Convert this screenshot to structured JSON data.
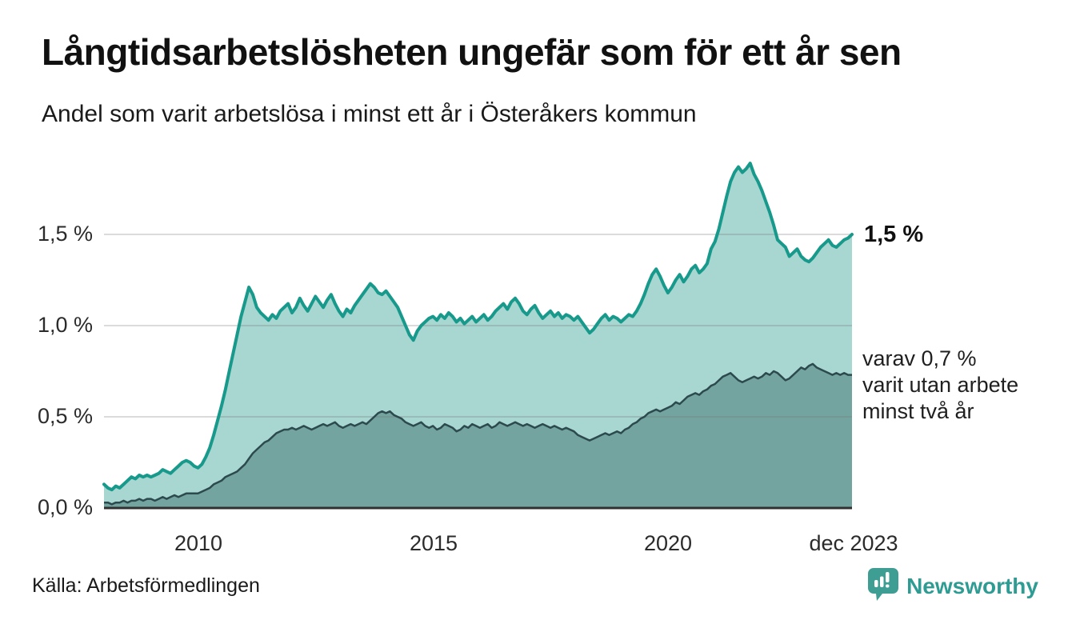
{
  "header": {
    "title": "Långtidsarbetslösheten ungefär som för ett år sen",
    "subtitle": "Andel som varit arbetslösa i minst ett år i Österåkers kommun"
  },
  "chart_data": {
    "type": "area",
    "title": "Långtidsarbetslösheten ungefär som för ett år sen",
    "subtitle": "Andel som varit arbetslösa i minst ett år i Österåkers kommun",
    "x_unit": "month",
    "x_start": "2008-01",
    "x_end": "2023-12",
    "ylim": [
      0,
      1.9
    ],
    "grid_values": [
      1.5,
      1.0,
      0.5
    ],
    "grid": true,
    "legend_position": "none",
    "yticks": [
      "1,5 %",
      "1,0 %",
      "0,5 %",
      "0,0 %"
    ],
    "xticks": [
      "2010",
      "2015",
      "2020",
      "dec 2023"
    ],
    "xtick_indices": [
      24,
      84,
      144,
      191
    ],
    "series": [
      {
        "name": "Andel arbetslösa minst ett år",
        "color": "#17998b",
        "fill": "#a8d6d0",
        "last_value_label": "1,5 %",
        "values": [
          0.13,
          0.11,
          0.1,
          0.12,
          0.11,
          0.13,
          0.15,
          0.17,
          0.16,
          0.18,
          0.17,
          0.18,
          0.17,
          0.18,
          0.19,
          0.21,
          0.2,
          0.19,
          0.21,
          0.23,
          0.25,
          0.26,
          0.25,
          0.23,
          0.22,
          0.24,
          0.28,
          0.33,
          0.4,
          0.48,
          0.56,
          0.65,
          0.75,
          0.85,
          0.95,
          1.05,
          1.13,
          1.21,
          1.17,
          1.1,
          1.07,
          1.05,
          1.03,
          1.06,
          1.04,
          1.08,
          1.1,
          1.12,
          1.07,
          1.1,
          1.15,
          1.11,
          1.08,
          1.12,
          1.16,
          1.13,
          1.1,
          1.14,
          1.17,
          1.12,
          1.08,
          1.05,
          1.09,
          1.07,
          1.11,
          1.14,
          1.17,
          1.2,
          1.23,
          1.21,
          1.18,
          1.17,
          1.19,
          1.16,
          1.13,
          1.1,
          1.05,
          1.0,
          0.95,
          0.92,
          0.97,
          1.0,
          1.02,
          1.04,
          1.05,
          1.03,
          1.06,
          1.04,
          1.07,
          1.05,
          1.02,
          1.04,
          1.01,
          1.03,
          1.05,
          1.02,
          1.04,
          1.06,
          1.03,
          1.05,
          1.08,
          1.1,
          1.12,
          1.09,
          1.13,
          1.15,
          1.12,
          1.08,
          1.06,
          1.09,
          1.11,
          1.07,
          1.04,
          1.06,
          1.08,
          1.05,
          1.07,
          1.04,
          1.06,
          1.05,
          1.03,
          1.05,
          1.02,
          0.99,
          0.96,
          0.98,
          1.01,
          1.04,
          1.06,
          1.03,
          1.05,
          1.04,
          1.02,
          1.04,
          1.06,
          1.05,
          1.08,
          1.12,
          1.17,
          1.23,
          1.28,
          1.31,
          1.27,
          1.22,
          1.18,
          1.21,
          1.25,
          1.28,
          1.24,
          1.27,
          1.31,
          1.33,
          1.29,
          1.31,
          1.34,
          1.42,
          1.46,
          1.53,
          1.62,
          1.71,
          1.79,
          1.84,
          1.87,
          1.84,
          1.86,
          1.89,
          1.83,
          1.79,
          1.74,
          1.68,
          1.62,
          1.55,
          1.47,
          1.45,
          1.43,
          1.38,
          1.4,
          1.42,
          1.38,
          1.36,
          1.35,
          1.37,
          1.4,
          1.43,
          1.45,
          1.47,
          1.44,
          1.43,
          1.45,
          1.47,
          1.48,
          1.5
        ]
      },
      {
        "name": "varav utan arbete minst två år",
        "color": "#2c4a4e",
        "fill": "#74a49f",
        "last_value_label": "0,7 %",
        "values": [
          0.03,
          0.03,
          0.02,
          0.03,
          0.03,
          0.04,
          0.03,
          0.04,
          0.04,
          0.05,
          0.04,
          0.05,
          0.05,
          0.04,
          0.05,
          0.06,
          0.05,
          0.06,
          0.07,
          0.06,
          0.07,
          0.08,
          0.08,
          0.08,
          0.08,
          0.09,
          0.1,
          0.11,
          0.13,
          0.14,
          0.15,
          0.17,
          0.18,
          0.19,
          0.2,
          0.22,
          0.24,
          0.27,
          0.3,
          0.32,
          0.34,
          0.36,
          0.37,
          0.39,
          0.41,
          0.42,
          0.43,
          0.43,
          0.44,
          0.43,
          0.44,
          0.45,
          0.44,
          0.43,
          0.44,
          0.45,
          0.46,
          0.45,
          0.46,
          0.47,
          0.45,
          0.44,
          0.45,
          0.46,
          0.45,
          0.46,
          0.47,
          0.46,
          0.48,
          0.5,
          0.52,
          0.53,
          0.52,
          0.53,
          0.51,
          0.5,
          0.49,
          0.47,
          0.46,
          0.45,
          0.46,
          0.47,
          0.45,
          0.44,
          0.45,
          0.43,
          0.44,
          0.46,
          0.45,
          0.44,
          0.42,
          0.43,
          0.45,
          0.44,
          0.46,
          0.45,
          0.44,
          0.45,
          0.46,
          0.44,
          0.45,
          0.47,
          0.46,
          0.45,
          0.46,
          0.47,
          0.46,
          0.45,
          0.46,
          0.45,
          0.44,
          0.45,
          0.46,
          0.45,
          0.44,
          0.45,
          0.44,
          0.43,
          0.44,
          0.43,
          0.42,
          0.4,
          0.39,
          0.38,
          0.37,
          0.38,
          0.39,
          0.4,
          0.41,
          0.4,
          0.41,
          0.42,
          0.41,
          0.43,
          0.44,
          0.46,
          0.47,
          0.49,
          0.5,
          0.52,
          0.53,
          0.54,
          0.53,
          0.54,
          0.55,
          0.56,
          0.58,
          0.57,
          0.59,
          0.61,
          0.62,
          0.63,
          0.62,
          0.64,
          0.65,
          0.67,
          0.68,
          0.7,
          0.72,
          0.73,
          0.74,
          0.72,
          0.7,
          0.69,
          0.7,
          0.71,
          0.72,
          0.71,
          0.72,
          0.74,
          0.73,
          0.75,
          0.74,
          0.72,
          0.7,
          0.71,
          0.73,
          0.75,
          0.77,
          0.76,
          0.78,
          0.79,
          0.77,
          0.76,
          0.75,
          0.74,
          0.73,
          0.74,
          0.73,
          0.74,
          0.73,
          0.73
        ]
      }
    ],
    "annotations": [
      {
        "text": "1,5 %",
        "series": 0,
        "position": "end-of-line"
      },
      {
        "text": "varav 0,7 % varit utan arbete minst två år",
        "series": 1,
        "position": "right-of-plot"
      }
    ]
  },
  "annotation_latest": {
    "label": "1,5 %"
  },
  "annotation_secondary": {
    "line1": "varav 0,7 %",
    "line2": "varit utan arbete",
    "line3": "minst två år"
  },
  "footer": {
    "source": "Källa: Arbetsförmedlingen",
    "brand": "Newsworthy"
  },
  "colors": {
    "line_primary": "#17998b",
    "fill_primary": "#a8d6d0",
    "line_secondary": "#2c4a4e",
    "fill_secondary": "#74a49f",
    "baseline": "#303030",
    "gridline": "#dcdcdc",
    "brand_teal": "#2f9c93"
  }
}
